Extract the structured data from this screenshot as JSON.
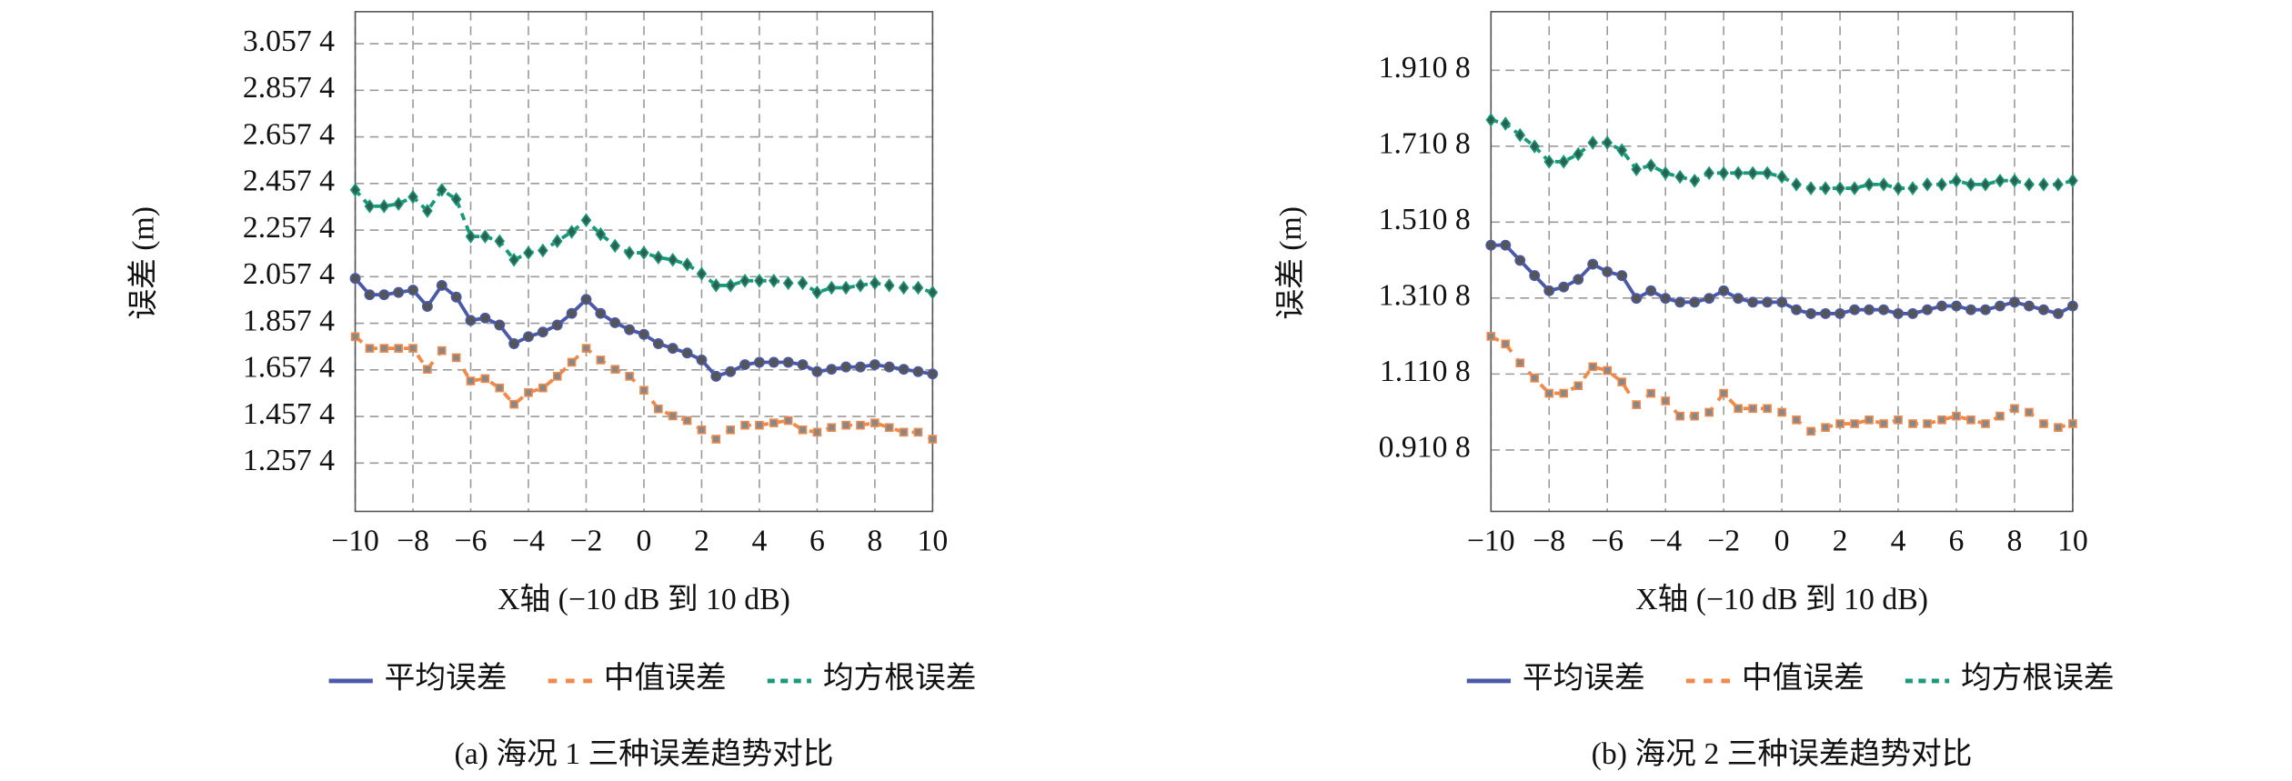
{
  "chart_data": [
    {
      "type": "line",
      "y_label": "误差 (m)",
      "x_label": "X轴 (−10 dB 到 10 dB)",
      "caption": "(a) 海况 1 三种误差趋势对比",
      "x": [
        -10,
        -9.5,
        -9,
        -8.5,
        -8,
        -7.5,
        -7,
        -6.5,
        -6,
        -5.5,
        -5,
        -4.5,
        -4,
        -3.5,
        -3,
        -2.5,
        -2,
        -1.5,
        -1,
        -0.5,
        0,
        0.5,
        1,
        1.5,
        2,
        2.5,
        3,
        3.5,
        4,
        4.5,
        5,
        5.5,
        6,
        6.5,
        7,
        7.5,
        8,
        8.5,
        9,
        9.5,
        10
      ],
      "xlim": [
        -10,
        10
      ],
      "xticks": [
        {
          "value": -10,
          "label": "−10"
        },
        {
          "value": -8,
          "label": "−8"
        },
        {
          "value": -6,
          "label": "−6"
        },
        {
          "value": -4,
          "label": "−4"
        },
        {
          "value": -2,
          "label": "−2"
        },
        0,
        2,
        4,
        6,
        8,
        10
      ],
      "ylim": [
        1.05,
        3.195
      ],
      "yticks": [
        {
          "value": 1.2574,
          "label": "1.257 4"
        },
        {
          "value": 1.4574,
          "label": "1.457 4"
        },
        {
          "value": 1.6574,
          "label": "1.657 4"
        },
        {
          "value": 1.8574,
          "label": "1.857 4"
        },
        {
          "value": 2.0574,
          "label": "2.057 4"
        },
        {
          "value": 2.2574,
          "label": "2.257 4"
        },
        {
          "value": 2.4574,
          "label": "2.457 4"
        },
        {
          "value": 2.6574,
          "label": "2.657 4"
        },
        {
          "value": 2.8574,
          "label": "2.857 4"
        },
        {
          "value": 3.0574,
          "label": "3.057 4"
        }
      ],
      "grid": true,
      "series": [
        {
          "name": "平均误差",
          "color": "#4a5aa8",
          "values": [
            2.05,
            1.98,
            1.98,
            1.99,
            2.0,
            1.93,
            2.02,
            1.97,
            1.87,
            1.88,
            1.85,
            1.77,
            1.8,
            1.82,
            1.85,
            1.9,
            1.96,
            1.9,
            1.86,
            1.83,
            1.81,
            1.77,
            1.75,
            1.73,
            1.7,
            1.63,
            1.65,
            1.68,
            1.69,
            1.69,
            1.69,
            1.68,
            1.65,
            1.66,
            1.67,
            1.67,
            1.68,
            1.67,
            1.66,
            1.65,
            1.64
          ]
        },
        {
          "name": "中值误差",
          "color": "#f08a4b",
          "values": [
            1.8,
            1.75,
            1.75,
            1.75,
            1.75,
            1.66,
            1.74,
            1.71,
            1.61,
            1.62,
            1.58,
            1.51,
            1.56,
            1.58,
            1.63,
            1.69,
            1.75,
            1.7,
            1.66,
            1.63,
            1.57,
            1.49,
            1.46,
            1.44,
            1.4,
            1.36,
            1.4,
            1.42,
            1.42,
            1.43,
            1.44,
            1.4,
            1.39,
            1.41,
            1.42,
            1.42,
            1.43,
            1.41,
            1.39,
            1.39,
            1.36
          ]
        },
        {
          "name": "均方根误差",
          "color": "#1a9a7a",
          "values": [
            2.43,
            2.36,
            2.36,
            2.37,
            2.4,
            2.34,
            2.43,
            2.39,
            2.23,
            2.23,
            2.21,
            2.13,
            2.16,
            2.17,
            2.21,
            2.25,
            2.3,
            2.24,
            2.19,
            2.16,
            2.16,
            2.14,
            2.13,
            2.11,
            2.07,
            2.02,
            2.02,
            2.04,
            2.04,
            2.04,
            2.03,
            2.03,
            1.99,
            2.01,
            2.01,
            2.02,
            2.03,
            2.02,
            2.01,
            2.01,
            1.99
          ]
        }
      ]
    },
    {
      "type": "line",
      "y_label": "误差 (m)",
      "x_label": "X轴 (−10 dB 到 10 dB)",
      "caption": "(b) 海况 2 三种误差趋势对比",
      "x": [
        -10,
        -9.5,
        -9,
        -8.5,
        -8,
        -7.5,
        -7,
        -6.5,
        -6,
        -5.5,
        -5,
        -4.5,
        -4,
        -3.5,
        -3,
        -2.5,
        -2,
        -1.5,
        -1,
        -0.5,
        0,
        0.5,
        1,
        1.5,
        2,
        2.5,
        3,
        3.5,
        4,
        4.5,
        5,
        5.5,
        6,
        6.5,
        7,
        7.5,
        8,
        8.5,
        9,
        9.5,
        10
      ],
      "xlim": [
        -10,
        10
      ],
      "xticks": [
        {
          "value": -10,
          "label": "−10"
        },
        {
          "value": -8,
          "label": "−8"
        },
        {
          "value": -6,
          "label": "−6"
        },
        {
          "value": -4,
          "label": "−4"
        },
        {
          "value": -2,
          "label": "−2"
        },
        0,
        2,
        4,
        6,
        8,
        10
      ],
      "ylim": [
        0.749,
        2.065
      ],
      "yticks": [
        {
          "value": 0.9108,
          "label": "0.910 8"
        },
        {
          "value": 1.1108,
          "label": "1.110 8"
        },
        {
          "value": 1.3108,
          "label": "1.310 8"
        },
        {
          "value": 1.5108,
          "label": "1.510 8"
        },
        {
          "value": 1.7108,
          "label": "1.710 8"
        },
        {
          "value": 1.9108,
          "label": "1.910 8"
        }
      ],
      "grid": true,
      "series": [
        {
          "name": "平均误差",
          "color": "#4a5aa8",
          "values": [
            1.45,
            1.45,
            1.41,
            1.37,
            1.33,
            1.34,
            1.36,
            1.4,
            1.38,
            1.37,
            1.31,
            1.33,
            1.31,
            1.3,
            1.3,
            1.31,
            1.33,
            1.31,
            1.3,
            1.3,
            1.3,
            1.28,
            1.27,
            1.27,
            1.27,
            1.28,
            1.28,
            1.28,
            1.27,
            1.27,
            1.28,
            1.29,
            1.29,
            1.28,
            1.28,
            1.29,
            1.3,
            1.29,
            1.28,
            1.27,
            1.29
          ]
        },
        {
          "name": "中值误差",
          "color": "#f08a4b",
          "values": [
            1.21,
            1.19,
            1.14,
            1.1,
            1.06,
            1.06,
            1.08,
            1.13,
            1.12,
            1.09,
            1.03,
            1.06,
            1.04,
            1.0,
            1.0,
            1.01,
            1.06,
            1.02,
            1.02,
            1.02,
            1.01,
            0.99,
            0.96,
            0.97,
            0.98,
            0.98,
            0.99,
            0.98,
            0.99,
            0.98,
            0.98,
            0.99,
            1.0,
            0.99,
            0.98,
            1.0,
            1.02,
            1.01,
            0.98,
            0.97,
            0.98
          ]
        },
        {
          "name": "均方根误差",
          "color": "#1a9a7a",
          "values": [
            1.78,
            1.77,
            1.74,
            1.71,
            1.67,
            1.67,
            1.69,
            1.72,
            1.72,
            1.7,
            1.65,
            1.66,
            1.64,
            1.63,
            1.62,
            1.64,
            1.64,
            1.64,
            1.64,
            1.64,
            1.63,
            1.61,
            1.6,
            1.6,
            1.6,
            1.6,
            1.61,
            1.61,
            1.6,
            1.6,
            1.61,
            1.61,
            1.62,
            1.61,
            1.61,
            1.62,
            1.62,
            1.61,
            1.61,
            1.61,
            1.62
          ]
        }
      ]
    }
  ]
}
